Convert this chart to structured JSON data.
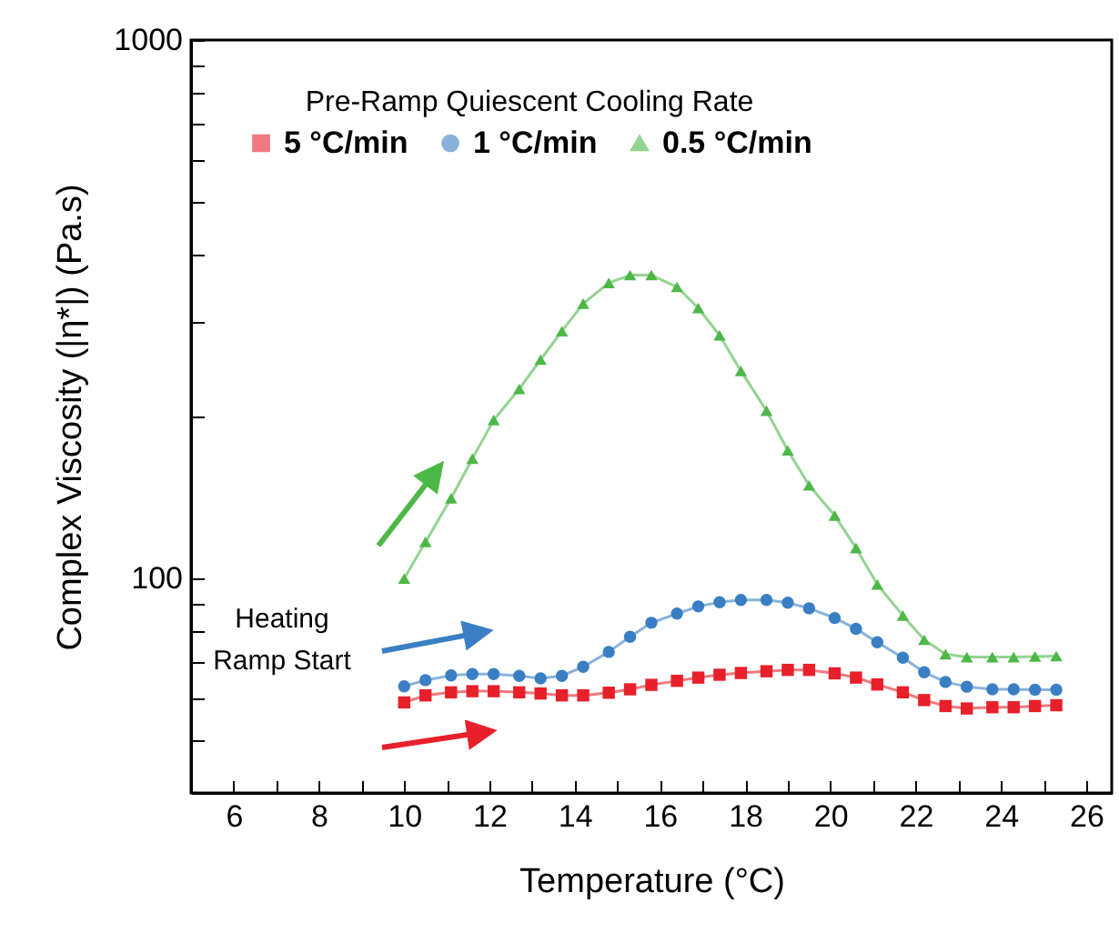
{
  "chart_data": {
    "type": "line",
    "xlabel": "Temperature (°C)",
    "ylabel": "Complex Viscosity (|η*|) (Pa.s)",
    "legend_title": "Pre-Ramp Quiescent Cooling Rate",
    "legend": "top",
    "log": "y",
    "grid": false,
    "x": [
      10,
      10.5,
      11.1,
      11.6,
      12.1,
      12.7,
      13.2,
      13.7,
      14.2,
      14.8,
      15.3,
      15.8,
      16.4,
      16.9,
      17.4,
      17.9,
      18.5,
      19.0,
      19.5,
      20.1,
      20.6,
      21.1,
      21.7,
      22.2,
      22.7,
      23.2,
      23.8,
      24.3,
      24.8,
      25.3
    ],
    "series": [
      {
        "name": "5 °C/min",
        "color": "#e8202a",
        "marker": "square",
        "values": [
          58.9,
          60.7,
          61.5,
          61.8,
          61.8,
          61.5,
          61.2,
          60.7,
          60.7,
          61.4,
          62.3,
          63.5,
          64.6,
          65.5,
          66.3,
          66.8,
          67.3,
          67.7,
          67.7,
          66.7,
          65.5,
          63.6,
          61.5,
          59.5,
          58.0,
          57.4,
          57.7,
          57.7,
          58.0,
          58.2
        ]
      },
      {
        "name": "1 °C/min",
        "color": "#3a7fc4",
        "marker": "circle",
        "values": [
          63.1,
          64.8,
          66.1,
          66.5,
          66.5,
          66.0,
          65.3,
          66.0,
          68.6,
          73.1,
          78.0,
          82.8,
          86.1,
          88.8,
          90.4,
          91.3,
          91.3,
          90.2,
          88.1,
          84.5,
          80.7,
          76.2,
          71.3,
          67.0,
          64.3,
          63.0,
          62.3,
          62.3,
          62.2,
          62.2
        ]
      },
      {
        "name": "0.5 °C/min",
        "color": "#4db848",
        "marker": "triangle",
        "values": [
          100,
          117,
          141,
          167,
          197,
          225,
          255,
          288,
          324,
          354,
          366,
          366,
          348,
          318,
          283,
          243,
          205,
          173,
          149,
          131,
          114,
          97.5,
          85.4,
          77.0,
          72.4,
          71.5,
          71.5,
          71.5,
          71.7,
          71.8
        ]
      }
    ],
    "xlim": [
      5,
      26.6
    ],
    "xticks": [
      6,
      8,
      10,
      12,
      14,
      16,
      18,
      20,
      22,
      24,
      26,
      {
        "value": 7,
        "label": null
      },
      {
        "value": 9,
        "label": null
      },
      {
        "value": 11,
        "label": null
      },
      {
        "value": 13,
        "label": null
      },
      {
        "value": 15,
        "label": null
      },
      {
        "value": 17,
        "label": null
      },
      {
        "value": 19,
        "label": null
      },
      {
        "value": 21,
        "label": null
      },
      {
        "value": 23,
        "label": null
      },
      {
        "value": 25,
        "label": null
      }
    ],
    "ylim": [
      40,
      1000
    ],
    "yticks": [
      100,
      1000,
      {
        "value": 50,
        "label": null
      },
      {
        "value": 60,
        "label": null
      },
      {
        "value": 70,
        "label": null
      },
      {
        "value": 80,
        "label": null
      },
      {
        "value": 90,
        "label": null
      },
      {
        "value": 200,
        "label": null
      },
      {
        "value": 300,
        "label": null
      },
      {
        "value": 400,
        "label": null
      },
      {
        "value": 500,
        "label": null
      },
      {
        "value": 600,
        "label": null
      },
      {
        "value": 700,
        "label": null
      },
      {
        "value": 800,
        "label": null
      },
      {
        "value": 900,
        "label": null
      }
    ],
    "annotations": [
      "Heating Ramp Start"
    ]
  }
}
